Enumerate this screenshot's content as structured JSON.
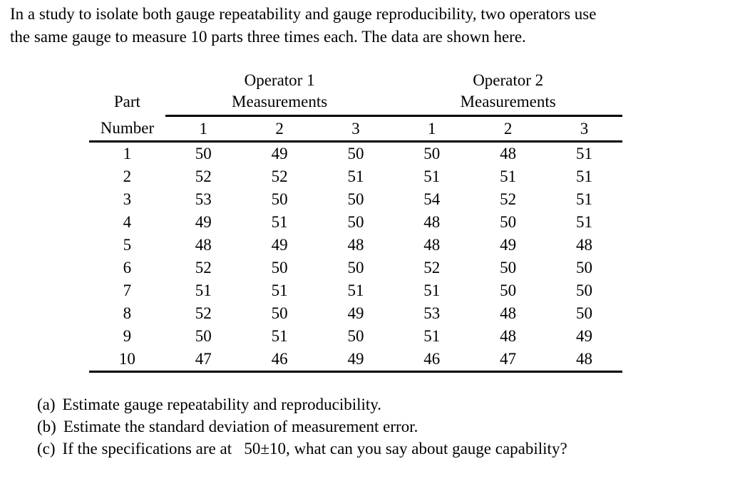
{
  "intro_lines": [
    "In a study to isolate both gauge repeatability and gauge reproducibility, two operators use",
    "the same gauge to measure 10 parts three times each. The data are shown here."
  ],
  "table": {
    "part_header_line1": "Part",
    "part_header_line2": "Number",
    "operator1_header": "Operator 1",
    "operator2_header": "Operator 2",
    "measurements_label": "Measurements",
    "trial_headers": [
      "1",
      "2",
      "3"
    ],
    "rows": [
      {
        "part": "1",
        "op1": [
          "50",
          "49",
          "50"
        ],
        "op2": [
          "50",
          "48",
          "51"
        ]
      },
      {
        "part": "2",
        "op1": [
          "52",
          "52",
          "51"
        ],
        "op2": [
          "51",
          "51",
          "51"
        ]
      },
      {
        "part": "3",
        "op1": [
          "53",
          "50",
          "50"
        ],
        "op2": [
          "54",
          "52",
          "51"
        ]
      },
      {
        "part": "4",
        "op1": [
          "49",
          "51",
          "50"
        ],
        "op2": [
          "48",
          "50",
          "51"
        ]
      },
      {
        "part": "5",
        "op1": [
          "48",
          "49",
          "48"
        ],
        "op2": [
          "48",
          "49",
          "48"
        ]
      },
      {
        "part": "6",
        "op1": [
          "52",
          "50",
          "50"
        ],
        "op2": [
          "52",
          "50",
          "50"
        ]
      },
      {
        "part": "7",
        "op1": [
          "51",
          "51",
          "51"
        ],
        "op2": [
          "51",
          "50",
          "50"
        ]
      },
      {
        "part": "8",
        "op1": [
          "52",
          "50",
          "49"
        ],
        "op2": [
          "53",
          "48",
          "50"
        ]
      },
      {
        "part": "9",
        "op1": [
          "50",
          "51",
          "50"
        ],
        "op2": [
          "51",
          "48",
          "49"
        ]
      },
      {
        "part": "10",
        "op1": [
          "47",
          "46",
          "49"
        ],
        "op2": [
          "46",
          "47",
          "48"
        ]
      }
    ]
  },
  "questions": [
    {
      "label": "(a)",
      "text": "Estimate gauge repeatability and reproducibility."
    },
    {
      "label": "(b)",
      "text": "Estimate the standard deviation of measurement error."
    },
    {
      "label": "(c)",
      "text": "If the specifications are at  50±10, what can you say about gauge capability?"
    }
  ],
  "colors": {
    "text": "#000000",
    "background": "#ffffff",
    "rule": "#000000"
  }
}
